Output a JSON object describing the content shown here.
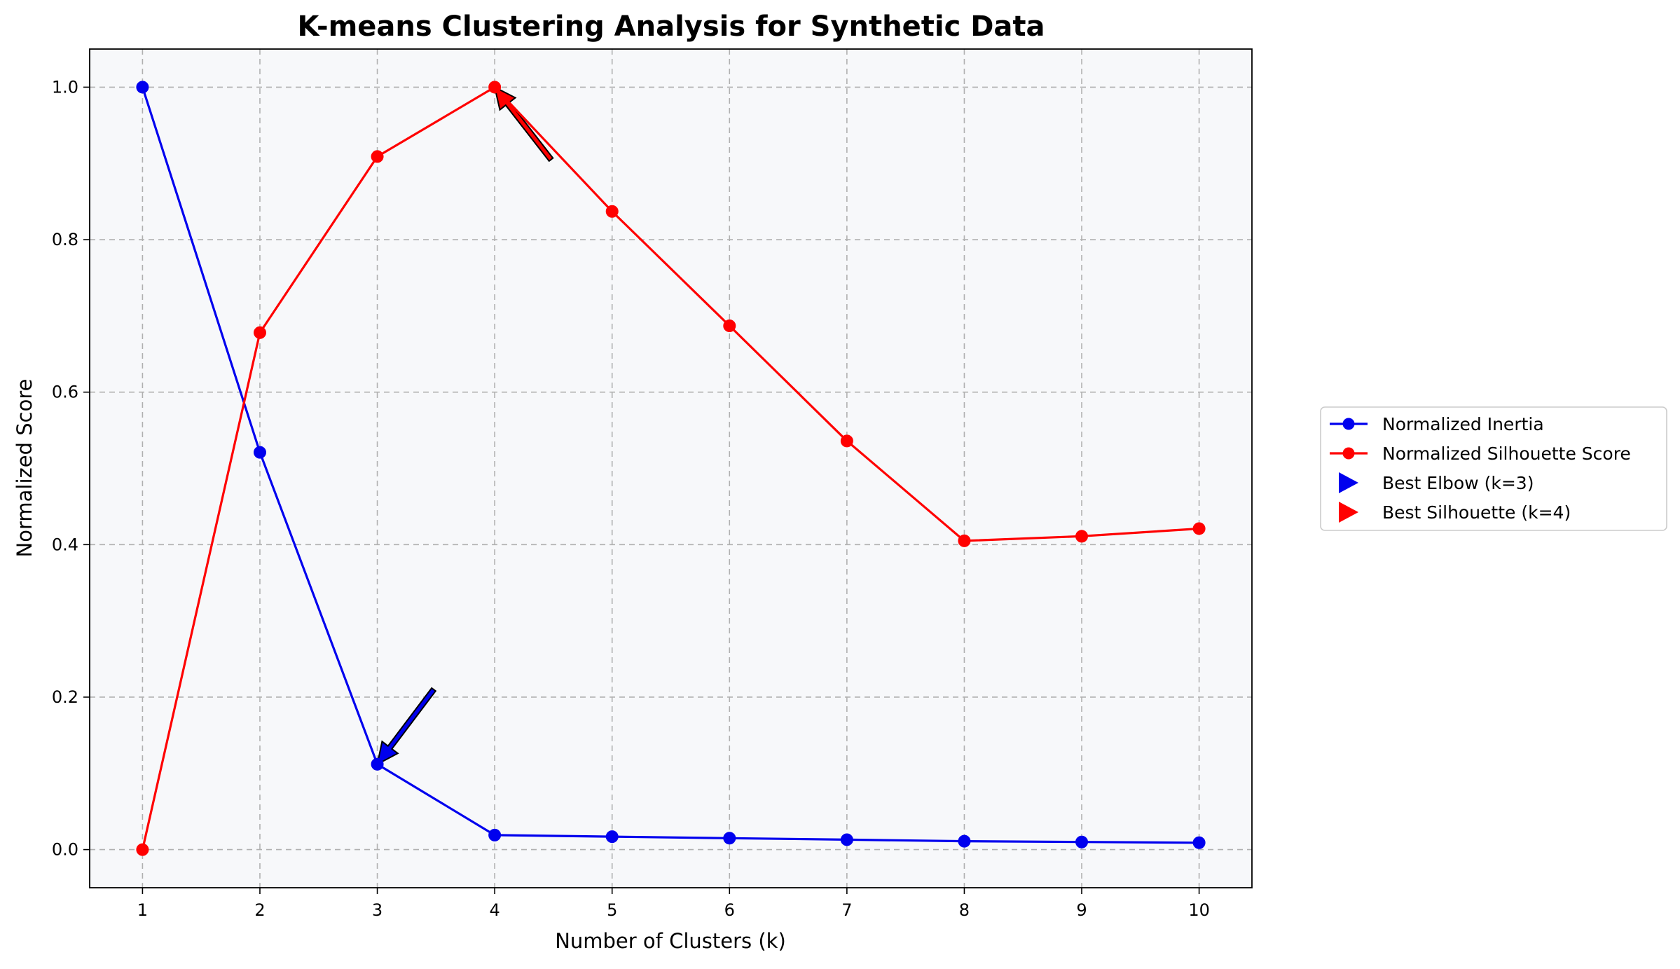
{
  "chart_data": {
    "type": "line",
    "title": "K-means Clustering Analysis for Synthetic Data",
    "xlabel": "Number of Clusters (k)",
    "ylabel": "Normalized Score",
    "x": [
      1,
      2,
      3,
      4,
      5,
      6,
      7,
      8,
      9,
      10
    ],
    "x_tick_labels": [
      "1",
      "2",
      "3",
      "4",
      "5",
      "6",
      "7",
      "8",
      "9",
      "10"
    ],
    "y_ticks": [
      0.0,
      0.2,
      0.4,
      0.6,
      0.8,
      1.0
    ],
    "y_tick_labels": [
      "0.0",
      "0.2",
      "0.4",
      "0.6",
      "0.8",
      "1.0"
    ],
    "xlim": [
      0.55,
      10.45
    ],
    "ylim": [
      -0.05,
      1.05
    ],
    "grid": true,
    "legend_position": "outside-right",
    "plot_background": "#f7f8fa",
    "series": [
      {
        "name": "Normalized Inertia",
        "color": "#0000ee",
        "marker": "circle",
        "values": [
          1.0,
          0.521,
          0.112,
          0.019,
          0.017,
          0.015,
          0.013,
          0.011,
          0.01,
          0.009
        ]
      },
      {
        "name": "Normalized Silhouette Score",
        "color": "#ff0000",
        "marker": "circle",
        "values": [
          0.0,
          0.678,
          0.909,
          1.0,
          0.837,
          0.687,
          0.536,
          0.405,
          0.411,
          0.421
        ]
      }
    ],
    "annotations": [
      {
        "name": "Best Elbow (k=3)",
        "color": "#0000ee",
        "marker": "triangle-right",
        "point": [
          3,
          0.112
        ],
        "text_anchor": [
          3.48,
          0.21
        ]
      },
      {
        "name": "Best Silhouette (k=4)",
        "color": "#ff0000",
        "marker": "triangle-right",
        "point": [
          4,
          1.0
        ],
        "text_anchor": [
          4.48,
          0.905
        ]
      }
    ]
  }
}
